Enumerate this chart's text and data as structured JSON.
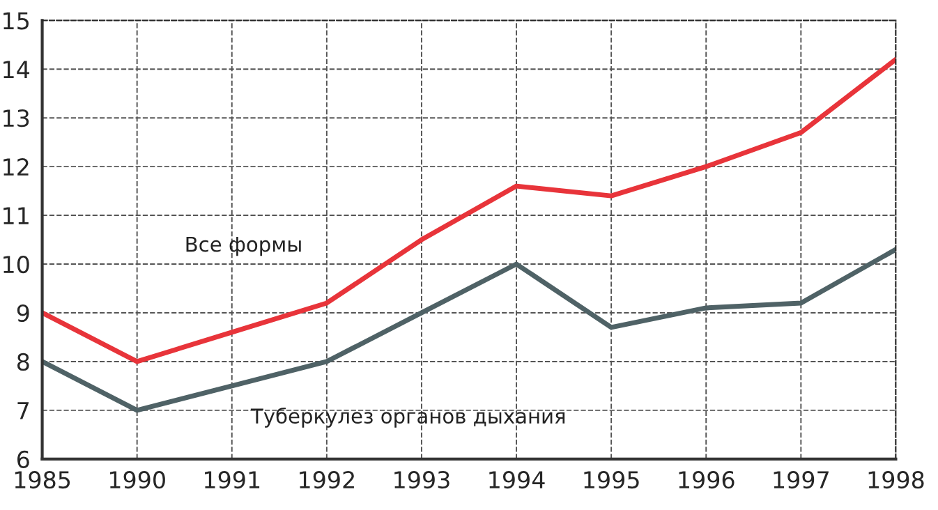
{
  "chart_data": {
    "type": "line",
    "categories": [
      "1985",
      "1990",
      "1991",
      "1992",
      "1993",
      "1994",
      "1995",
      "1996",
      "1997",
      "1998"
    ],
    "series": [
      {
        "name": "Все формы",
        "color": "#e8343a",
        "values": [
          9.0,
          8.0,
          8.6,
          9.2,
          10.5,
          11.6,
          11.4,
          12.0,
          12.7,
          14.2
        ]
      },
      {
        "name": "Туберкулез органов дыхания",
        "color": "#4f6266",
        "values": [
          8.0,
          7.0,
          7.5,
          8.0,
          9.0,
          10.0,
          8.7,
          9.1,
          9.2,
          10.3
        ]
      }
    ],
    "ylim": [
      6,
      15
    ],
    "yticks": [
      6,
      7,
      8,
      9,
      10,
      11,
      12,
      13,
      14,
      15
    ],
    "grid": true,
    "marker": "none",
    "line_style": "solid",
    "legend": false
  }
}
